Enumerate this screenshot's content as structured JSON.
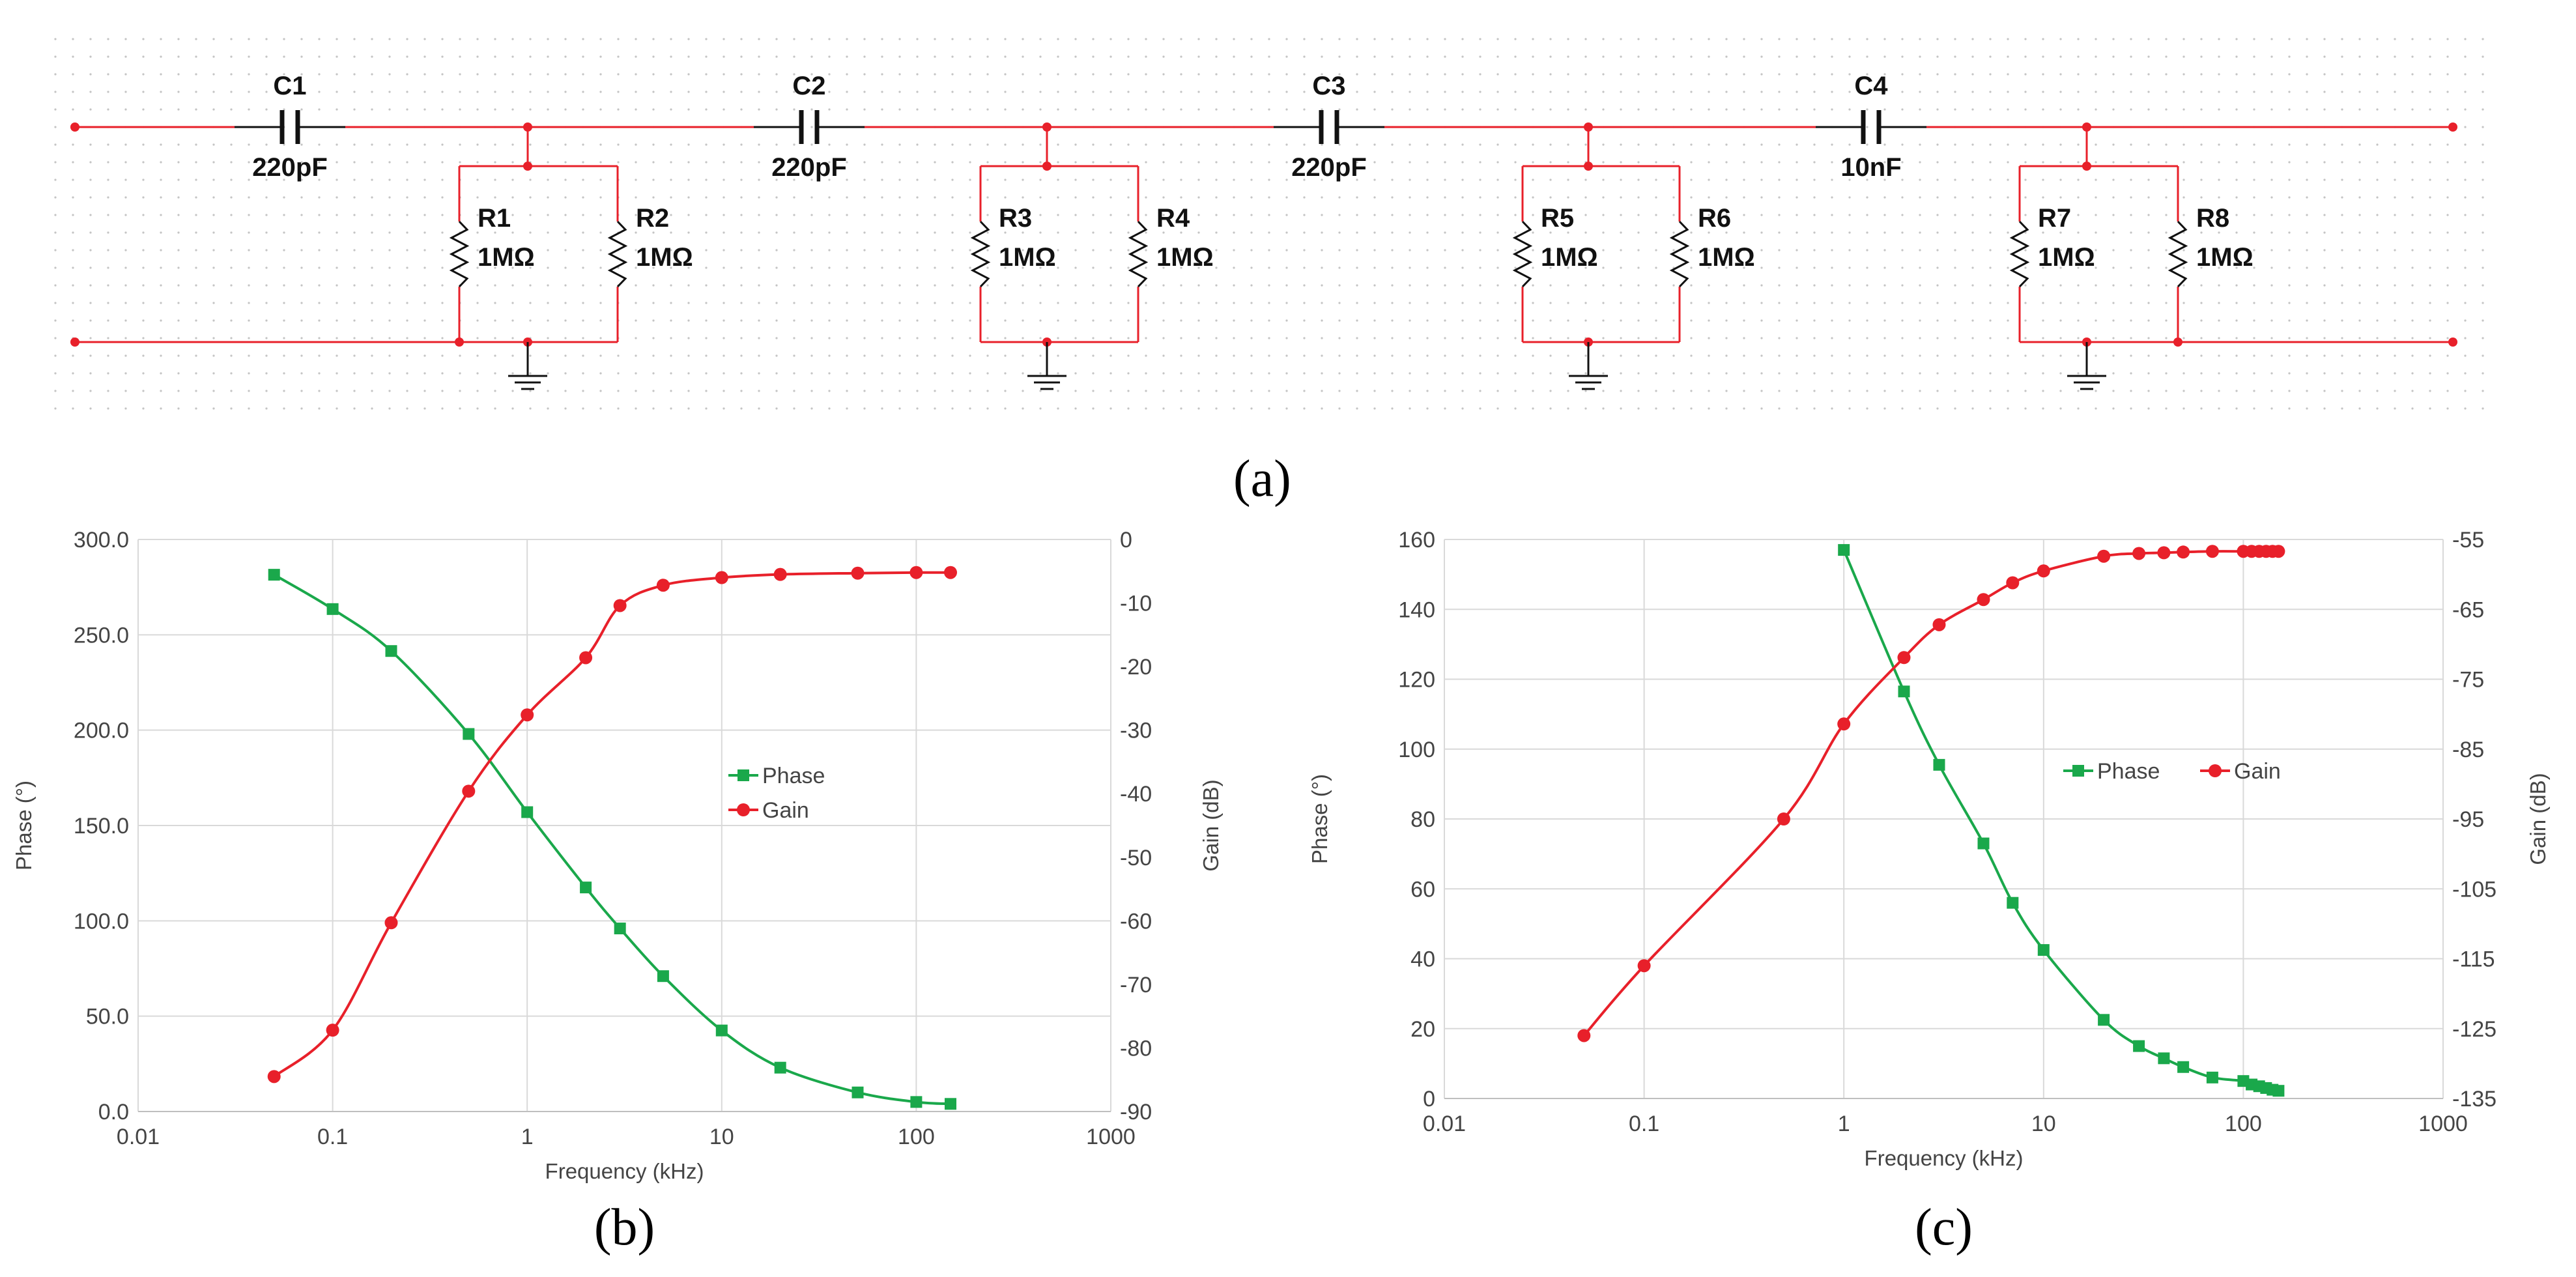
{
  "schematic": {
    "panel_label": "(a)",
    "wire_color": "#e8202a",
    "capacitors": [
      {
        "name": "C1",
        "value": "220pF"
      },
      {
        "name": "C2",
        "value": "220pF"
      },
      {
        "name": "C3",
        "value": "220pF"
      },
      {
        "name": "C4",
        "value": "10nF"
      }
    ],
    "resistors": [
      {
        "name": "R1",
        "value": "1MΩ"
      },
      {
        "name": "R2",
        "value": "1MΩ"
      },
      {
        "name": "R3",
        "value": "1MΩ"
      },
      {
        "name": "R4",
        "value": "1MΩ"
      },
      {
        "name": "R5",
        "value": "1MΩ"
      },
      {
        "name": "R6",
        "value": "1MΩ"
      },
      {
        "name": "R7",
        "value": "1MΩ"
      },
      {
        "name": "R8",
        "value": "1MΩ"
      }
    ]
  },
  "chart_data": [
    {
      "id": "b",
      "panel_label": "(b)",
      "type": "line",
      "x_scale": "log",
      "xlabel": "Frequency (kHz)",
      "ylabel": "Phase (°)",
      "y2label": "Gain (dB)",
      "xlim": [
        0.01,
        1000
      ],
      "ylim": [
        0,
        300
      ],
      "y2lim": [
        -90,
        0
      ],
      "x_ticks": [
        "0.01",
        "0.1",
        "1",
        "10",
        "100",
        "1000"
      ],
      "y_ticks": [
        "0.0",
        "50.0",
        "100.0",
        "150.0",
        "200.0",
        "250.0",
        "300.0"
      ],
      "y2_ticks": [
        "-90",
        "-80",
        "-70",
        "-60",
        "-50",
        "-40",
        "-30",
        "-20",
        "-10",
        "0"
      ],
      "legend": "center-right, stacked",
      "series": [
        {
          "name": "Phase",
          "axis": "left",
          "color": "#1aa84b",
          "marker": "square",
          "x": [
            0.05,
            0.1,
            0.2,
            0.5,
            1,
            2,
            3,
            5,
            10,
            20,
            50,
            100,
            150
          ],
          "y": [
            281.5,
            263.5,
            241.5,
            198,
            157,
            117.5,
            96,
            71,
            42.5,
            23,
            10,
            5,
            4
          ]
        },
        {
          "name": "Gain",
          "axis": "right",
          "color": "#e8202a",
          "marker": "circle",
          "x": [
            0.05,
            0.1,
            0.2,
            0.5,
            1,
            2,
            3,
            5,
            10,
            20,
            50,
            100,
            150
          ],
          "y": [
            -84.5,
            -77.2,
            -60.3,
            -39.6,
            -27.6,
            -18.6,
            -10.4,
            -7.2,
            -6,
            -5.5,
            -5.3,
            -5.2,
            -5.2
          ]
        }
      ]
    },
    {
      "id": "c",
      "panel_label": "(c)",
      "type": "line",
      "x_scale": "log",
      "xlabel": "Frequency (kHz)",
      "ylabel": "Phase (°)",
      "y2label": "Gain (dB)",
      "xlim": [
        0.01,
        1000
      ],
      "ylim": [
        0,
        160
      ],
      "y2lim": [
        -135,
        -55
      ],
      "x_ticks": [
        "0.01",
        "0.1",
        "1",
        "10",
        "100",
        "1000"
      ],
      "y_ticks": [
        "0",
        "20",
        "40",
        "60",
        "80",
        "100",
        "120",
        "140",
        "160"
      ],
      "y2_ticks": [
        "-135",
        "-125",
        "-115",
        "-105",
        "-95",
        "-85",
        "-75",
        "-65",
        "-55"
      ],
      "legend": "center-right, horizontal",
      "series": [
        {
          "name": "Phase",
          "axis": "left",
          "color": "#1aa84b",
          "marker": "square",
          "x": [
            1,
            2,
            3,
            5,
            7,
            10,
            20,
            30,
            40,
            50,
            70,
            100,
            110,
            120,
            130,
            140,
            150
          ],
          "y": [
            157,
            116.5,
            95.5,
            73,
            56,
            42.5,
            22.5,
            15,
            11.5,
            9,
            6,
            5,
            4,
            3.5,
            3,
            2.5,
            2.2
          ]
        },
        {
          "name": "Gain",
          "axis": "right",
          "color": "#e8202a",
          "marker": "circle",
          "x": [
            0.05,
            0.1,
            0.5,
            1,
            2,
            3,
            5,
            7,
            10,
            20,
            30,
            40,
            50,
            70,
            100,
            110,
            120,
            130,
            140,
            150
          ],
          "y": [
            -126,
            -116,
            -95,
            -81.4,
            -71.9,
            -67.2,
            -63.6,
            -61.2,
            -59.5,
            -57.4,
            -57,
            -56.9,
            -56.8,
            -56.7,
            -56.7,
            -56.7,
            -56.7,
            -56.7,
            -56.7,
            -56.7
          ]
        }
      ]
    }
  ]
}
